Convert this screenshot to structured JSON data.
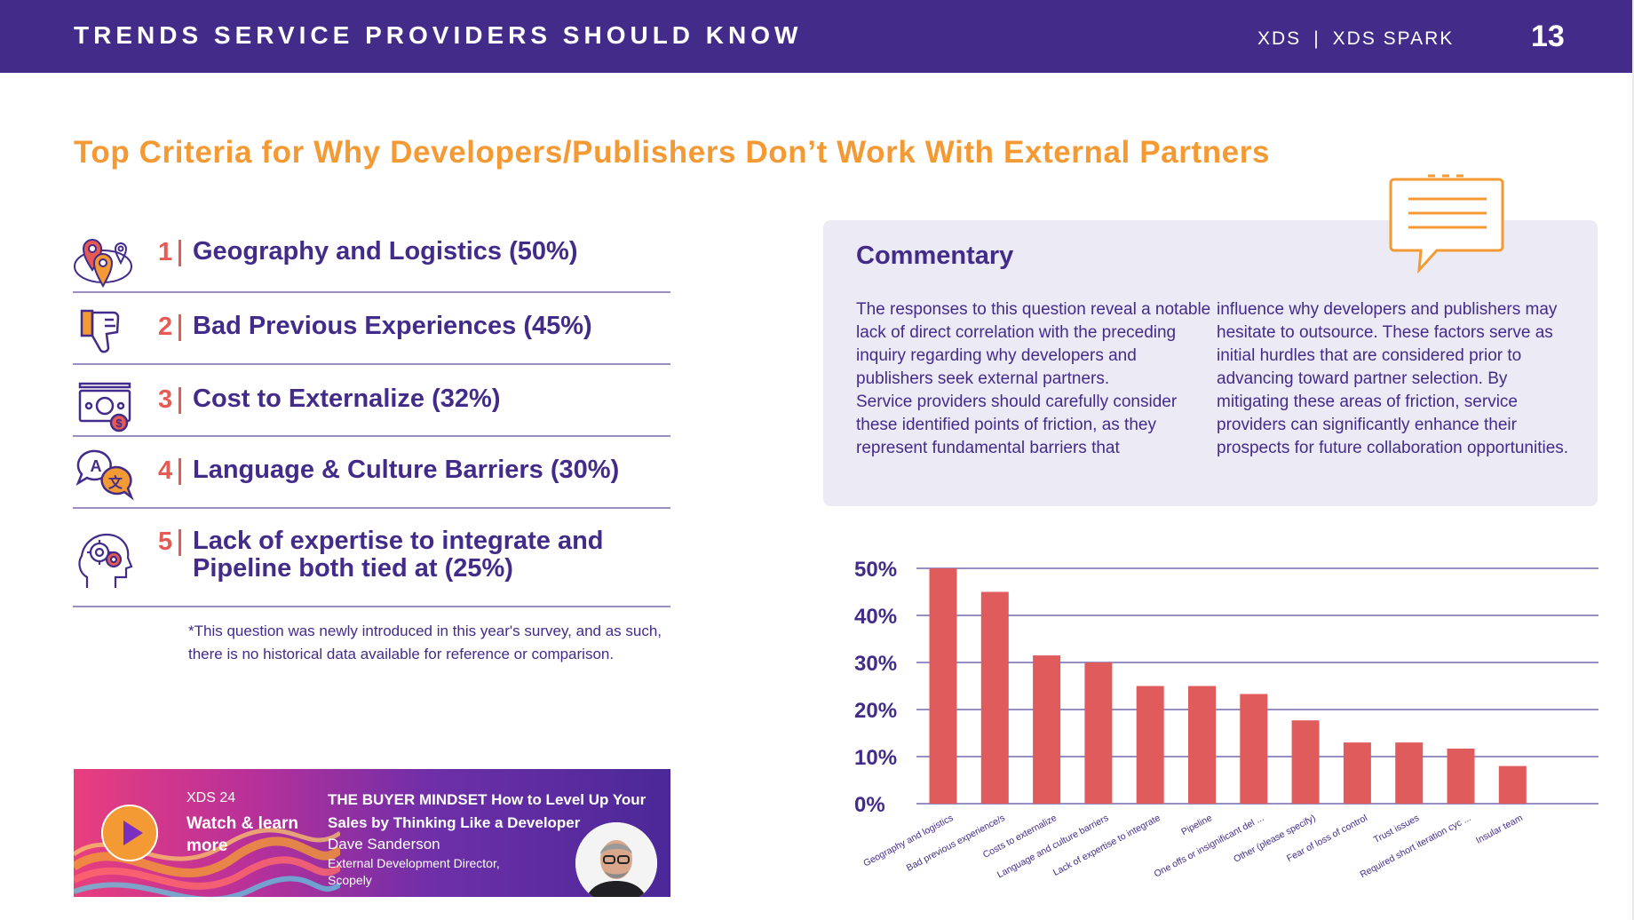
{
  "header": {
    "title": "TRENDS SERVICE PROVIDERS SHOULD KNOW",
    "brand_primary": "XDS",
    "separator": "|",
    "brand_secondary": "XDS SPARK",
    "page_number": "13"
  },
  "main_title": "Top Criteria for Why Developers/Publishers Don’t Work With External Partners",
  "criteria": [
    {
      "rank": "1",
      "label": "Geography and Logistics (50%)",
      "icon": "map-pin-icon"
    },
    {
      "rank": "2",
      "label": "Bad Previous Experiences (45%)",
      "icon": "thumbs-down-icon"
    },
    {
      "rank": "3",
      "label": "Cost to Externalize (32%)",
      "icon": "money-icon"
    },
    {
      "rank": "4",
      "label": "Language & Culture Barriers (30%)",
      "icon": "translate-icon"
    },
    {
      "rank": "5",
      "label": "Lack of expertise to integrate and Pipeline both tied at (25%)",
      "icon": "head-gears-icon"
    }
  ],
  "footnote": "*This question was newly introduced in this year's survey, and as such, there is no historical data available for reference or comparison.",
  "banner": {
    "tag": "XDS 24",
    "cta": "Watch & learn more",
    "talk_title": "THE BUYER MINDSET How to Level Up Your Sales by Thinking Like a Developer",
    "speaker": "Dave Sanderson",
    "role": "External Development Director, Scopely",
    "play_icon": "play-icon"
  },
  "commentary": {
    "title": "Commentary",
    "left_paragraphs": [
      "The responses to this question reveal a notable lack of direct correlation with the preceding inquiry regarding why developers and publishers seek external partners.",
      "Service providers should carefully consider these identified points of friction, as they represent fundamental barriers that"
    ],
    "right_paragraph": "influence why developers and publishers may hesitate to outsource. These factors serve as initial hurdles that are considered prior to advancing toward partner selection. By mitigating these areas of friction, service providers can significantly enhance their prospects for future collaboration opportunities."
  },
  "colors": {
    "header_bg": "#432b8a",
    "accent_orange": "#f39a35",
    "accent_red": "#e55a54",
    "text_purple": "#432b8a",
    "commentary_bg": "#ecebf5",
    "bar": "#e05c5c"
  },
  "chart_data": {
    "type": "bar",
    "title": "",
    "xlabel": "",
    "ylabel": "",
    "ylim": [
      0,
      50
    ],
    "yticks": [
      0,
      10,
      20,
      30,
      40,
      50
    ],
    "ytick_labels": [
      "0%",
      "10%",
      "20%",
      "30%",
      "40%",
      "50%"
    ],
    "grid": true,
    "categories": [
      "Geography and logistics",
      "Bad previous experience/s",
      "Costs to externalize",
      "Language and culture barriers",
      "Lack of expertise to integrate",
      "Pipeline",
      "One offs or insignificant del ...",
      "Other (please specify)",
      "Fear of loss of control",
      "Trust issues",
      "Required short iteration cyc ...",
      "Insular team"
    ],
    "values": [
      50,
      45,
      31.5,
      30,
      25,
      25,
      23.3,
      17.7,
      13,
      13,
      11.7,
      8
    ]
  }
}
